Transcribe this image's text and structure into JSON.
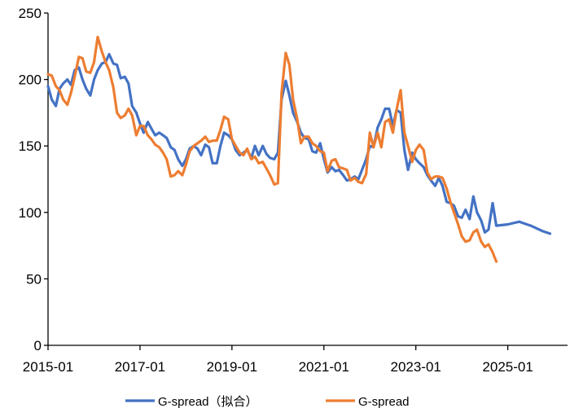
{
  "chart_data": {
    "type": "line",
    "title": "",
    "xlabel": "",
    "ylabel": "",
    "ylim": [
      0,
      250
    ],
    "yticks": [
      0,
      50,
      100,
      150,
      200,
      250
    ],
    "xlim": [
      2015.0,
      2026.3
    ],
    "xticks": [
      {
        "value": 2015.0,
        "label": "2015-01"
      },
      {
        "value": 2017.0,
        "label": "2017-01"
      },
      {
        "value": 2019.0,
        "label": "2019-01"
      },
      {
        "value": 2021.0,
        "label": "2021-01"
      },
      {
        "value": 2023.0,
        "label": "2023-01"
      },
      {
        "value": 2025.0,
        "label": "2025-01"
      }
    ],
    "grid": false,
    "legend_position": "bottom",
    "series": [
      {
        "name": "G-spread（拟合）",
        "color": "#4472C4",
        "points": [
          [
            2015.0,
            195
          ],
          [
            2015.08,
            185
          ],
          [
            2015.17,
            180
          ],
          [
            2015.25,
            193
          ],
          [
            2015.33,
            197
          ],
          [
            2015.42,
            200
          ],
          [
            2015.5,
            196
          ],
          [
            2015.58,
            207
          ],
          [
            2015.67,
            209
          ],
          [
            2015.75,
            200
          ],
          [
            2015.83,
            193
          ],
          [
            2015.92,
            188
          ],
          [
            2016.0,
            200
          ],
          [
            2016.08,
            207
          ],
          [
            2016.17,
            212
          ],
          [
            2016.25,
            213
          ],
          [
            2016.33,
            219
          ],
          [
            2016.42,
            212
          ],
          [
            2016.5,
            211
          ],
          [
            2016.58,
            201
          ],
          [
            2016.67,
            202
          ],
          [
            2016.75,
            197
          ],
          [
            2016.83,
            180
          ],
          [
            2016.92,
            175
          ],
          [
            2017.0,
            167
          ],
          [
            2017.08,
            160
          ],
          [
            2017.17,
            168
          ],
          [
            2017.25,
            163
          ],
          [
            2017.33,
            158
          ],
          [
            2017.42,
            160
          ],
          [
            2017.5,
            158
          ],
          [
            2017.58,
            156
          ],
          [
            2017.67,
            149
          ],
          [
            2017.75,
            147
          ],
          [
            2017.83,
            140
          ],
          [
            2017.92,
            135
          ],
          [
            2018.0,
            140
          ],
          [
            2018.08,
            148
          ],
          [
            2018.17,
            150
          ],
          [
            2018.25,
            148
          ],
          [
            2018.33,
            143
          ],
          [
            2018.42,
            151
          ],
          [
            2018.5,
            149
          ],
          [
            2018.58,
            137
          ],
          [
            2018.67,
            137
          ],
          [
            2018.75,
            150
          ],
          [
            2018.83,
            160
          ],
          [
            2018.92,
            158
          ],
          [
            2019.0,
            155
          ],
          [
            2019.08,
            147
          ],
          [
            2019.17,
            143
          ],
          [
            2019.25,
            145
          ],
          [
            2019.33,
            147
          ],
          [
            2019.42,
            141
          ],
          [
            2019.5,
            150
          ],
          [
            2019.58,
            143
          ],
          [
            2019.67,
            150
          ],
          [
            2019.75,
            144
          ],
          [
            2019.83,
            141
          ],
          [
            2019.92,
            140
          ],
          [
            2020.0,
            145
          ],
          [
            2020.08,
            185
          ],
          [
            2020.17,
            199
          ],
          [
            2020.25,
            188
          ],
          [
            2020.33,
            175
          ],
          [
            2020.42,
            168
          ],
          [
            2020.5,
            160
          ],
          [
            2020.58,
            156
          ],
          [
            2020.67,
            155
          ],
          [
            2020.75,
            146
          ],
          [
            2020.83,
            145
          ],
          [
            2020.92,
            152
          ],
          [
            2021.0,
            140
          ],
          [
            2021.08,
            130
          ],
          [
            2021.17,
            134
          ],
          [
            2021.25,
            131
          ],
          [
            2021.33,
            132
          ],
          [
            2021.42,
            128
          ],
          [
            2021.5,
            124
          ],
          [
            2021.58,
            125
          ],
          [
            2021.67,
            127
          ],
          [
            2021.75,
            125
          ],
          [
            2021.83,
            132
          ],
          [
            2021.92,
            140
          ],
          [
            2022.0,
            150
          ],
          [
            2022.08,
            149
          ],
          [
            2022.17,
            164
          ],
          [
            2022.25,
            170
          ],
          [
            2022.33,
            178
          ],
          [
            2022.42,
            178
          ],
          [
            2022.5,
            165
          ],
          [
            2022.58,
            177
          ],
          [
            2022.67,
            175
          ],
          [
            2022.75,
            147
          ],
          [
            2022.83,
            132
          ],
          [
            2022.92,
            145
          ],
          [
            2023.0,
            140
          ],
          [
            2023.08,
            137
          ],
          [
            2023.17,
            134
          ],
          [
            2023.25,
            128
          ],
          [
            2023.33,
            124
          ],
          [
            2023.42,
            120
          ],
          [
            2023.5,
            126
          ],
          [
            2023.58,
            120
          ],
          [
            2023.67,
            108
          ],
          [
            2023.75,
            107
          ],
          [
            2023.83,
            105
          ],
          [
            2023.92,
            97
          ],
          [
            2024.0,
            96
          ],
          [
            2024.08,
            102
          ],
          [
            2024.17,
            95
          ],
          [
            2024.25,
            112
          ],
          [
            2024.33,
            100
          ],
          [
            2024.42,
            94
          ],
          [
            2024.5,
            85
          ],
          [
            2024.58,
            87
          ],
          [
            2024.67,
            107
          ],
          [
            2024.75,
            90
          ],
          [
            2025.0,
            91
          ],
          [
            2025.25,
            93
          ],
          [
            2025.5,
            90
          ],
          [
            2025.75,
            86
          ],
          [
            2025.92,
            84
          ]
        ]
      },
      {
        "name": "G-spread",
        "color": "#ED7D31",
        "points": [
          [
            2015.0,
            204
          ],
          [
            2015.08,
            203
          ],
          [
            2015.17,
            195
          ],
          [
            2015.25,
            192
          ],
          [
            2015.33,
            185
          ],
          [
            2015.42,
            181
          ],
          [
            2015.5,
            190
          ],
          [
            2015.58,
            202
          ],
          [
            2015.67,
            217
          ],
          [
            2015.75,
            216
          ],
          [
            2015.83,
            206
          ],
          [
            2015.92,
            205
          ],
          [
            2016.0,
            213
          ],
          [
            2016.08,
            232
          ],
          [
            2016.17,
            221
          ],
          [
            2016.25,
            213
          ],
          [
            2016.33,
            207
          ],
          [
            2016.42,
            194
          ],
          [
            2016.5,
            175
          ],
          [
            2016.58,
            171
          ],
          [
            2016.67,
            173
          ],
          [
            2016.75,
            178
          ],
          [
            2016.83,
            173
          ],
          [
            2016.92,
            158
          ],
          [
            2017.0,
            165
          ],
          [
            2017.08,
            165
          ],
          [
            2017.17,
            158
          ],
          [
            2017.25,
            155
          ],
          [
            2017.33,
            151
          ],
          [
            2017.42,
            149
          ],
          [
            2017.5,
            145
          ],
          [
            2017.58,
            140
          ],
          [
            2017.67,
            127
          ],
          [
            2017.75,
            128
          ],
          [
            2017.83,
            131
          ],
          [
            2017.92,
            128
          ],
          [
            2018.0,
            136
          ],
          [
            2018.08,
            146
          ],
          [
            2018.17,
            150
          ],
          [
            2018.25,
            152
          ],
          [
            2018.33,
            154
          ],
          [
            2018.42,
            157
          ],
          [
            2018.5,
            153
          ],
          [
            2018.58,
            154
          ],
          [
            2018.67,
            154
          ],
          [
            2018.75,
            162
          ],
          [
            2018.83,
            172
          ],
          [
            2018.92,
            170
          ],
          [
            2019.0,
            155
          ],
          [
            2019.08,
            150
          ],
          [
            2019.17,
            145
          ],
          [
            2019.25,
            143
          ],
          [
            2019.33,
            148
          ],
          [
            2019.42,
            140
          ],
          [
            2019.5,
            142
          ],
          [
            2019.58,
            137
          ],
          [
            2019.67,
            138
          ],
          [
            2019.75,
            133
          ],
          [
            2019.83,
            128
          ],
          [
            2019.92,
            121
          ],
          [
            2020.0,
            122
          ],
          [
            2020.08,
            190
          ],
          [
            2020.17,
            220
          ],
          [
            2020.25,
            211
          ],
          [
            2020.33,
            185
          ],
          [
            2020.42,
            170
          ],
          [
            2020.5,
            152
          ],
          [
            2020.58,
            157
          ],
          [
            2020.67,
            157
          ],
          [
            2020.75,
            152
          ],
          [
            2020.83,
            150
          ],
          [
            2020.92,
            146
          ],
          [
            2021.0,
            145
          ],
          [
            2021.08,
            131
          ],
          [
            2021.17,
            139
          ],
          [
            2021.25,
            140
          ],
          [
            2021.33,
            134
          ],
          [
            2021.42,
            133
          ],
          [
            2021.5,
            132
          ],
          [
            2021.58,
            124
          ],
          [
            2021.67,
            126
          ],
          [
            2021.75,
            123
          ],
          [
            2021.83,
            122
          ],
          [
            2021.92,
            129
          ],
          [
            2022.0,
            160
          ],
          [
            2022.08,
            149
          ],
          [
            2022.17,
            160
          ],
          [
            2022.25,
            149
          ],
          [
            2022.33,
            168
          ],
          [
            2022.42,
            170
          ],
          [
            2022.5,
            160
          ],
          [
            2022.58,
            177
          ],
          [
            2022.67,
            192
          ],
          [
            2022.75,
            160
          ],
          [
            2022.83,
            150
          ],
          [
            2022.92,
            138
          ],
          [
            2023.0,
            147
          ],
          [
            2023.08,
            151
          ],
          [
            2023.17,
            147
          ],
          [
            2023.25,
            130
          ],
          [
            2023.33,
            125
          ],
          [
            2023.42,
            127
          ],
          [
            2023.5,
            127
          ],
          [
            2023.58,
            126
          ],
          [
            2023.67,
            118
          ],
          [
            2023.75,
            108
          ],
          [
            2023.83,
            100
          ],
          [
            2023.92,
            91
          ],
          [
            2024.0,
            82
          ],
          [
            2024.08,
            78
          ],
          [
            2024.17,
            79
          ],
          [
            2024.25,
            85
          ],
          [
            2024.33,
            87
          ],
          [
            2024.42,
            78
          ],
          [
            2024.5,
            74
          ],
          [
            2024.58,
            76
          ],
          [
            2024.67,
            70
          ],
          [
            2024.75,
            63
          ]
        ]
      }
    ]
  }
}
